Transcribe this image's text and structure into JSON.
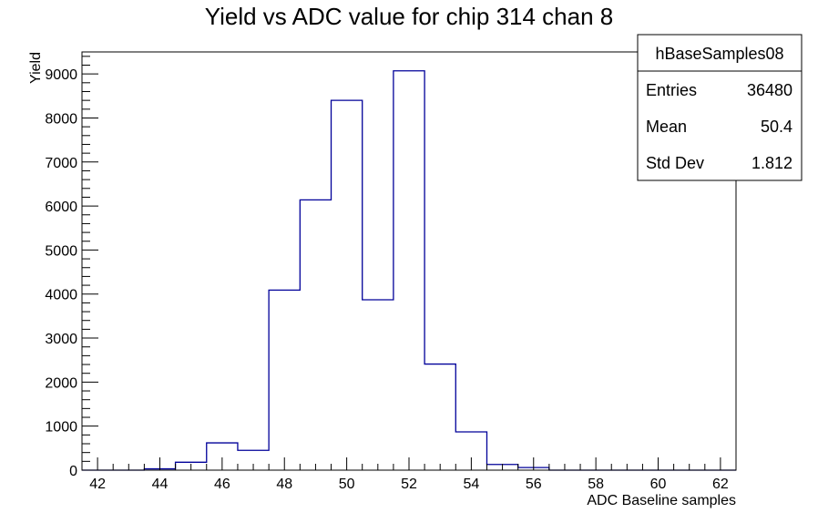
{
  "chart_data": {
    "type": "histogram",
    "title": "Yield vs ADC value for chip 314 chan 8",
    "xlabel": "ADC Baseline samples",
    "ylabel": "Yield",
    "xlim": [
      41.5,
      62.5
    ],
    "ylim": [
      0,
      9500
    ],
    "x_ticks": [
      42,
      44,
      46,
      48,
      50,
      52,
      54,
      56,
      58,
      60,
      62
    ],
    "y_ticks": [
      0,
      1000,
      2000,
      3000,
      4000,
      5000,
      6000,
      7000,
      8000,
      9000
    ],
    "grid": false,
    "series": [
      {
        "name": "hBaseSamples08",
        "color": "#000099",
        "bin_width": 1,
        "bin_centers": [
          42,
          43,
          44,
          45,
          46,
          47,
          48,
          49,
          50,
          51,
          52,
          53,
          54,
          55,
          56,
          57,
          58,
          59,
          60,
          61,
          62
        ],
        "values": [
          0,
          0,
          30,
          180,
          620,
          450,
          4090,
          6140,
          8400,
          3870,
          9070,
          2410,
          870,
          130,
          60,
          0,
          0,
          0,
          0,
          0,
          0
        ]
      }
    ],
    "stats_box": {
      "name": "hBaseSamples08",
      "rows": [
        {
          "label": "Entries",
          "value": "36480"
        },
        {
          "label": "Mean",
          "value": "50.4"
        },
        {
          "label": "Std Dev",
          "value": "1.812"
        }
      ]
    }
  }
}
